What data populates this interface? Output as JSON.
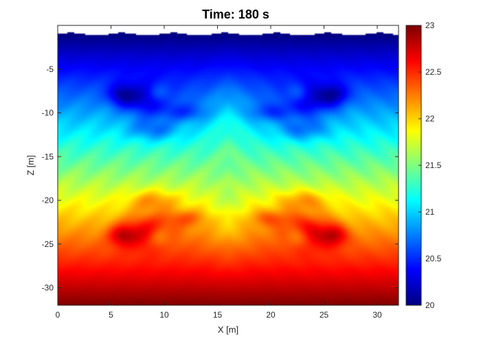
{
  "chart_data": {
    "type": "heatmap",
    "title": "Time: 180 s",
    "xlabel": "X [m]",
    "ylabel": "Z [m]",
    "xlim": [
      0,
      32
    ],
    "ylim": [
      -32,
      0
    ],
    "x_ticks": [
      0,
      5,
      10,
      15,
      20,
      25,
      30
    ],
    "y_ticks": [
      -5,
      -10,
      -15,
      -20,
      -25,
      -30
    ],
    "x_tick_labels": [
      "0",
      "5",
      "10",
      "15",
      "20",
      "25",
      "30"
    ],
    "y_tick_labels": [
      "-5",
      "-10",
      "-15",
      "-20",
      "-25",
      "-30"
    ],
    "colorbar": {
      "range": [
        20,
        23
      ],
      "ticks": [
        20,
        20.5,
        21,
        21.5,
        22,
        22.5,
        23
      ],
      "tick_labels": [
        "20",
        "20.5",
        "21",
        "21.5",
        "22",
        "22.5",
        "23"
      ],
      "colormap": "jet"
    },
    "field": {
      "description_of_mode": "temperature field, linear vertical gradient with symmetric Rayleigh-Taylor style mushroom plumes",
      "top_value": 20.0,
      "bottom_value": 23.0,
      "surface_z": -1.0,
      "symmetry_x": 16,
      "cold_plume_value_min": 20.4,
      "warm_plume_value_max": 22.6
    },
    "grid": false
  },
  "colors": {
    "background": "#ffffff",
    "axis": "#262626"
  }
}
